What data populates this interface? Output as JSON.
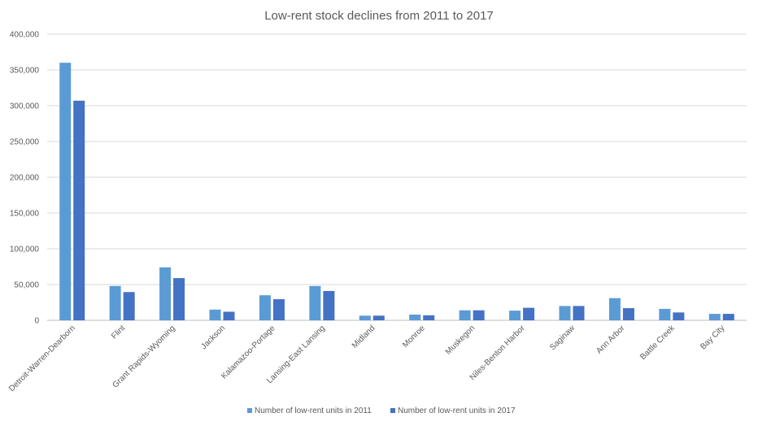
{
  "chart_data": {
    "type": "bar",
    "title": "Low-rent stock declines  from 2011 to 2017",
    "xlabel": "",
    "ylabel": "",
    "ylim": [
      0,
      400000
    ],
    "yticks": [
      0,
      50000,
      100000,
      150000,
      200000,
      250000,
      300000,
      350000,
      400000
    ],
    "ytick_labels": [
      "0",
      "50,000",
      "100,000",
      "150,000",
      "200,000",
      "250,000",
      "300,000",
      "350,000",
      "400,000"
    ],
    "grid": true,
    "legend_position": "bottom",
    "categories": [
      "Detroit-Warren-Dearborn",
      "Flint",
      "Grant Rapids-Wyoming",
      "Jackson",
      "Kalamazoo-Portage",
      "Lansing-East Lansing",
      "Midland",
      "Monroe",
      "Muskegon",
      "Niles-Benton Harbor",
      "Saginaw",
      "Ann Arbor",
      "Battle Creek",
      "Bay City"
    ],
    "series": [
      {
        "name": "Number of low-rent units in 2011",
        "color": "#5b9bd5",
        "values": [
          360000,
          48000,
          74000,
          15000,
          35000,
          48000,
          6500,
          8000,
          14000,
          13500,
          20000,
          31000,
          16000,
          9000
        ]
      },
      {
        "name": "Number of low-rent units in 2017",
        "color": "#4472c4",
        "values": [
          307000,
          39500,
          59000,
          12000,
          29500,
          41000,
          6500,
          7000,
          14000,
          17500,
          20000,
          17000,
          11000,
          9000
        ]
      }
    ]
  }
}
